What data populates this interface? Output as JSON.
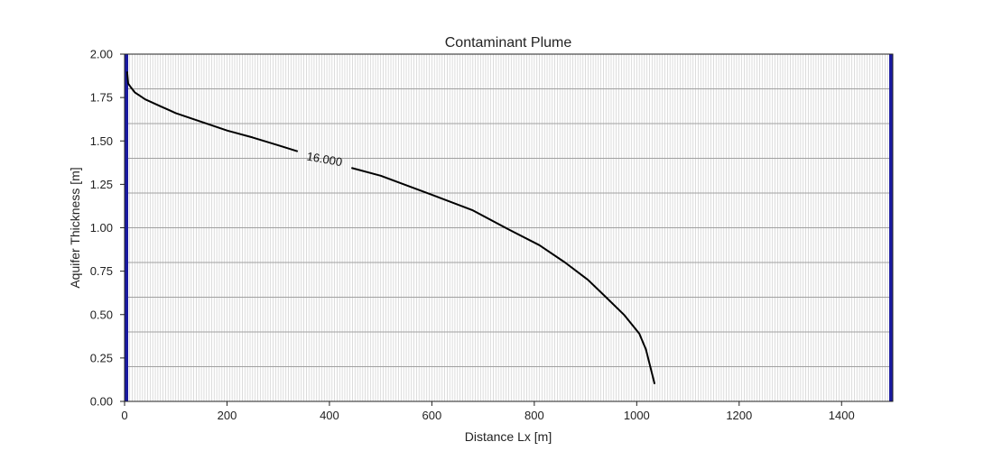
{
  "chart_data": {
    "type": "line",
    "title": "Contaminant Plume",
    "xlabel": "Distance Lx [m]",
    "ylabel": "Aquifer Thickness [m]",
    "xlim": [
      0,
      1500
    ],
    "ylim": [
      0,
      2
    ],
    "xticks": [
      0,
      200,
      400,
      600,
      800,
      1000,
      1200,
      1400
    ],
    "yticks": [
      0.0,
      0.25,
      0.5,
      0.75,
      1.0,
      1.25,
      1.5,
      1.75,
      2.0
    ],
    "xtick_labels": [
      "0",
      "200",
      "400",
      "600",
      "800",
      "1000",
      "1200",
      "1400"
    ],
    "ytick_labels": [
      "0.00",
      "0.25",
      "0.50",
      "0.75",
      "1.00",
      "1.25",
      "1.50",
      "1.75",
      "2.00"
    ],
    "grid": true,
    "grid_columns": {
      "start": 0,
      "end": 1500,
      "step": 5
    },
    "grid_rows": {
      "start": 0,
      "end": 2,
      "step": 0.2
    },
    "boundaries": [
      {
        "x": 0,
        "color": "#1a1aa0"
      },
      {
        "x": 1500,
        "color": "#1a1aa0"
      }
    ],
    "contours": [
      {
        "level_label": "16.000",
        "color": "#000000",
        "label_at": {
          "x": 390,
          "y": 1.39
        },
        "label_gap": [
          338,
          443
        ],
        "x": [
          5,
          7,
          12,
          20,
          30,
          40,
          55,
          70,
          85,
          100,
          120,
          150,
          200,
          250,
          300,
          338,
          443,
          500,
          600,
          680,
          750,
          810,
          860,
          905,
          940,
          975,
          1005,
          1018,
          1035
        ],
        "y": [
          1.9,
          1.83,
          1.81,
          1.78,
          1.76,
          1.74,
          1.72,
          1.7,
          1.68,
          1.66,
          1.64,
          1.61,
          1.56,
          1.52,
          1.475,
          1.44,
          1.345,
          1.3,
          1.19,
          1.1,
          0.99,
          0.9,
          0.8,
          0.7,
          0.6,
          0.5,
          0.39,
          0.3,
          0.1
        ]
      }
    ]
  }
}
